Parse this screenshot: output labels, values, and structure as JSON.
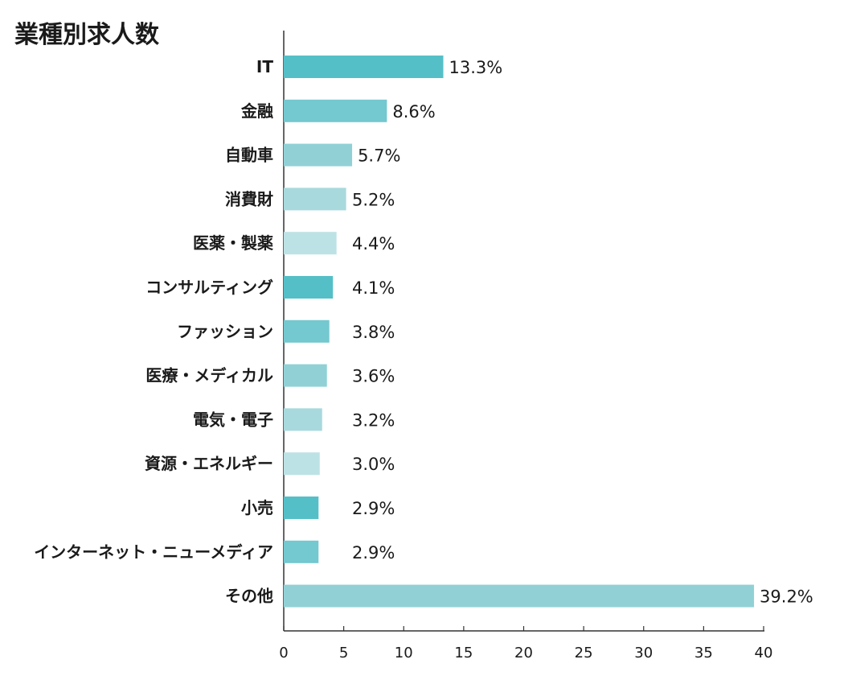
{
  "chart_data": {
    "type": "bar",
    "orientation": "horizontal",
    "title": "業種別求人数",
    "xlabel": "",
    "ylabel": "",
    "xlim": [
      0,
      40
    ],
    "xticks": [
      "0",
      "5",
      "10",
      "15",
      "20",
      "25",
      "30",
      "35",
      "40"
    ],
    "grid": false,
    "legend": "none",
    "categories": [
      "IT",
      "金融",
      "自動車",
      "消費財",
      "医薬・製薬",
      "コンサルティング",
      "ファッション",
      "医療・メディカル",
      "電気・電子",
      "資源・エネルギー",
      "小売",
      "インターネット・ニューメディア",
      "その他"
    ],
    "values": [
      13.3,
      8.6,
      5.7,
      5.2,
      4.4,
      4.1,
      3.8,
      3.6,
      3.2,
      3.0,
      2.9,
      2.9,
      39.2
    ],
    "value_labels": [
      "13.3%",
      "8.6%",
      "5.7%",
      "5.2%",
      "4.4%",
      "4.1%",
      "3.8%",
      "3.6%",
      "3.2%",
      "3.0%",
      "2.9%",
      "2.9%",
      "39.2%"
    ],
    "colors": [
      "#55bfc7",
      "#74c8cf",
      "#91d1d6",
      "#a8d9dd",
      "#bde2e5"
    ]
  }
}
